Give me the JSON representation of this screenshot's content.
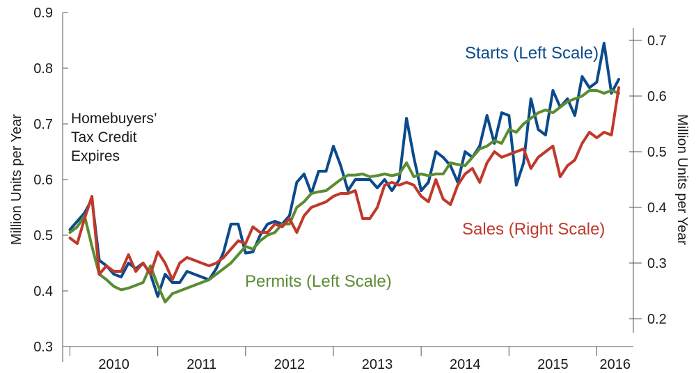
{
  "chart_data": {
    "type": "line",
    "title": "",
    "x_axis": {
      "type": "date",
      "range": [
        "2009-12",
        "2016-06"
      ],
      "tick_labels": [
        "2010",
        "2011",
        "2012",
        "2013",
        "2014",
        "2015",
        "2016"
      ]
    },
    "y_left": {
      "label": "Million Units per Year",
      "range": [
        0.3,
        0.9
      ],
      "ticks": [
        "0.3",
        "0.4",
        "0.5",
        "0.6",
        "0.7",
        "0.8",
        "0.9"
      ]
    },
    "y_right": {
      "label": "Million Units per Year",
      "range": [
        0.15,
        0.75
      ],
      "ticks": [
        "0.2",
        "0.3",
        "0.4",
        "0.5",
        "0.6",
        "0.7"
      ]
    },
    "grid": false,
    "series": [
      {
        "name": "Starts (Left Scale)",
        "axis": "left",
        "color": "#0b4a8c",
        "x": [
          "2010-01",
          "2010-02",
          "2010-03",
          "2010-04",
          "2010-05",
          "2010-06",
          "2010-07",
          "2010-08",
          "2010-09",
          "2010-10",
          "2010-11",
          "2010-12",
          "2011-01",
          "2011-02",
          "2011-03",
          "2011-04",
          "2011-05",
          "2011-06",
          "2011-07",
          "2011-08",
          "2011-09",
          "2011-10",
          "2011-11",
          "2011-12",
          "2012-01",
          "2012-02",
          "2012-03",
          "2012-04",
          "2012-05",
          "2012-06",
          "2012-07",
          "2012-08",
          "2012-09",
          "2012-10",
          "2012-11",
          "2012-12",
          "2013-01",
          "2013-02",
          "2013-03",
          "2013-04",
          "2013-05",
          "2013-06",
          "2013-07",
          "2013-08",
          "2013-09",
          "2013-10",
          "2013-11",
          "2013-12",
          "2014-01",
          "2014-02",
          "2014-03",
          "2014-04",
          "2014-05",
          "2014-06",
          "2014-07",
          "2014-08",
          "2014-09",
          "2014-10",
          "2014-11",
          "2014-12",
          "2015-01",
          "2015-02",
          "2015-03",
          "2015-04",
          "2015-05",
          "2015-06",
          "2015-07",
          "2015-08",
          "2015-09",
          "2015-10",
          "2015-11",
          "2015-12",
          "2016-01",
          "2016-02",
          "2016-03",
          "2016-04"
        ],
        "values": [
          0.51,
          0.525,
          0.54,
          0.565,
          0.455,
          0.445,
          0.43,
          0.425,
          0.45,
          0.44,
          0.45,
          0.43,
          0.39,
          0.43,
          0.415,
          0.415,
          0.435,
          0.43,
          0.425,
          0.42,
          0.44,
          0.47,
          0.52,
          0.52,
          0.468,
          0.47,
          0.5,
          0.52,
          0.525,
          0.52,
          0.535,
          0.595,
          0.61,
          0.575,
          0.615,
          0.615,
          0.66,
          0.625,
          0.58,
          0.6,
          0.6,
          0.6,
          0.585,
          0.6,
          0.58,
          0.6,
          0.71,
          0.64,
          0.58,
          0.595,
          0.65,
          0.64,
          0.625,
          0.595,
          0.65,
          0.64,
          0.66,
          0.715,
          0.665,
          0.72,
          0.715,
          0.59,
          0.63,
          0.745,
          0.69,
          0.68,
          0.76,
          0.73,
          0.745,
          0.715,
          0.785,
          0.765,
          0.775,
          0.845,
          0.755,
          0.78
        ]
      },
      {
        "name": "Permits (Left Scale)",
        "axis": "left",
        "color": "#5b8c32",
        "x": [
          "2010-01",
          "2010-02",
          "2010-03",
          "2010-04",
          "2010-05",
          "2010-06",
          "2010-07",
          "2010-08",
          "2010-09",
          "2010-10",
          "2010-11",
          "2010-12",
          "2011-01",
          "2011-02",
          "2011-03",
          "2011-04",
          "2011-05",
          "2011-06",
          "2011-07",
          "2011-08",
          "2011-09",
          "2011-10",
          "2011-11",
          "2011-12",
          "2012-01",
          "2012-02",
          "2012-03",
          "2012-04",
          "2012-05",
          "2012-06",
          "2012-07",
          "2012-08",
          "2012-09",
          "2012-10",
          "2012-11",
          "2012-12",
          "2013-01",
          "2013-02",
          "2013-03",
          "2013-04",
          "2013-05",
          "2013-06",
          "2013-07",
          "2013-08",
          "2013-09",
          "2013-10",
          "2013-11",
          "2013-12",
          "2014-01",
          "2014-02",
          "2014-03",
          "2014-04",
          "2014-05",
          "2014-06",
          "2014-07",
          "2014-08",
          "2014-09",
          "2014-10",
          "2014-11",
          "2014-12",
          "2015-01",
          "2015-02",
          "2015-03",
          "2015-04",
          "2015-05",
          "2015-06",
          "2015-07",
          "2015-08",
          "2015-09",
          "2015-10",
          "2015-11",
          "2015-12",
          "2016-01",
          "2016-02",
          "2016-03",
          "2016-04"
        ],
        "values": [
          0.505,
          0.515,
          0.535,
          0.48,
          0.43,
          0.42,
          0.408,
          0.402,
          0.405,
          0.41,
          0.415,
          0.445,
          0.41,
          0.38,
          0.395,
          0.4,
          0.405,
          0.41,
          0.415,
          0.42,
          0.43,
          0.44,
          0.45,
          0.465,
          0.48,
          0.475,
          0.49,
          0.5,
          0.505,
          0.52,
          0.52,
          0.55,
          0.56,
          0.575,
          0.578,
          0.58,
          0.59,
          0.6,
          0.608,
          0.608,
          0.61,
          0.605,
          0.607,
          0.61,
          0.607,
          0.61,
          0.63,
          0.605,
          0.61,
          0.607,
          0.61,
          0.61,
          0.63,
          0.627,
          0.625,
          0.64,
          0.655,
          0.66,
          0.67,
          0.665,
          0.69,
          0.685,
          0.7,
          0.71,
          0.72,
          0.725,
          0.72,
          0.73,
          0.74,
          0.745,
          0.75,
          0.76,
          0.76,
          0.755,
          0.76,
          0.755
        ]
      },
      {
        "name": "Sales (Right Scale)",
        "axis": "right",
        "color": "#c0392b",
        "x": [
          "2010-01",
          "2010-02",
          "2010-03",
          "2010-04",
          "2010-05",
          "2010-06",
          "2010-07",
          "2010-08",
          "2010-09",
          "2010-10",
          "2010-11",
          "2010-12",
          "2011-01",
          "2011-02",
          "2011-03",
          "2011-04",
          "2011-05",
          "2011-06",
          "2011-07",
          "2011-08",
          "2011-09",
          "2011-10",
          "2011-11",
          "2011-12",
          "2012-01",
          "2012-02",
          "2012-03",
          "2012-04",
          "2012-05",
          "2012-06",
          "2012-07",
          "2012-08",
          "2012-09",
          "2012-10",
          "2012-11",
          "2012-12",
          "2013-01",
          "2013-02",
          "2013-03",
          "2013-04",
          "2013-05",
          "2013-06",
          "2013-07",
          "2013-08",
          "2013-09",
          "2013-10",
          "2013-11",
          "2013-12",
          "2014-01",
          "2014-02",
          "2014-03",
          "2014-04",
          "2014-05",
          "2014-06",
          "2014-07",
          "2014-08",
          "2014-09",
          "2014-10",
          "2014-11",
          "2014-12",
          "2015-01",
          "2015-02",
          "2015-03",
          "2015-04",
          "2015-05",
          "2015-06",
          "2015-07",
          "2015-08",
          "2015-09",
          "2015-10",
          "2015-11",
          "2015-12",
          "2016-01",
          "2016-02",
          "2016-03",
          "2016-04"
        ],
        "values": [
          0.345,
          0.335,
          0.38,
          0.42,
          0.28,
          0.295,
          0.285,
          0.285,
          0.315,
          0.285,
          0.3,
          0.28,
          0.32,
          0.3,
          0.27,
          0.3,
          0.31,
          0.305,
          0.3,
          0.295,
          0.3,
          0.31,
          0.325,
          0.34,
          0.335,
          0.365,
          0.355,
          0.355,
          0.37,
          0.365,
          0.38,
          0.355,
          0.385,
          0.4,
          0.405,
          0.41,
          0.42,
          0.425,
          0.425,
          0.43,
          0.38,
          0.38,
          0.4,
          0.44,
          0.445,
          0.44,
          0.445,
          0.44,
          0.42,
          0.41,
          0.45,
          0.415,
          0.405,
          0.44,
          0.46,
          0.47,
          0.445,
          0.48,
          0.5,
          0.49,
          0.495,
          0.5,
          0.505,
          0.47,
          0.49,
          0.5,
          0.51,
          0.455,
          0.475,
          0.485,
          0.515,
          0.535,
          0.525,
          0.535,
          0.53,
          0.615
        ]
      }
    ],
    "annotations": [
      {
        "name": "tax-credit",
        "lines": [
          "Homebuyers’",
          "Tax Credit",
          "Expires"
        ]
      }
    ]
  }
}
